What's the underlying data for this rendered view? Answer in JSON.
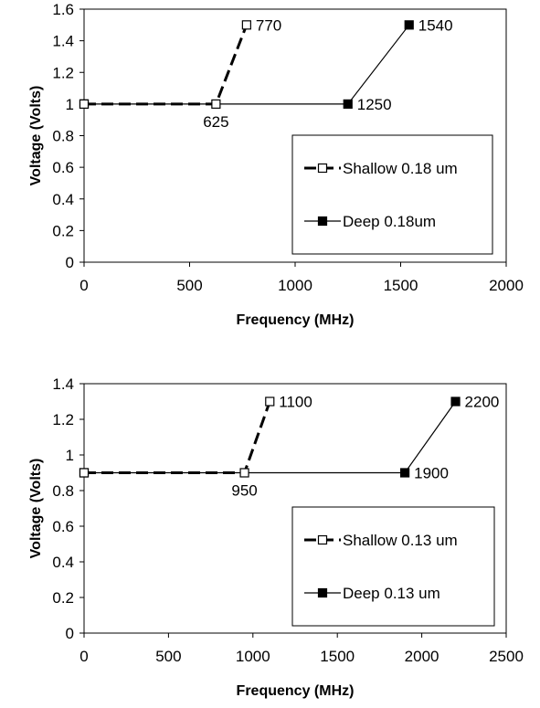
{
  "colors": {
    "line": "#000000",
    "marker_fill_open": "#ffffff",
    "marker_fill_solid": "#000000",
    "background": "#ffffff"
  },
  "chart_data": [
    {
      "type": "line",
      "title": "",
      "xlabel": "Frequency (MHz)",
      "ylabel": "Voltage (Volts)",
      "xlim": [
        0,
        2000
      ],
      "ylim": [
        0,
        1.6
      ],
      "xticks": [
        "0",
        "500",
        "1000",
        "1500",
        "2000"
      ],
      "yticks": [
        "0",
        "0.2",
        "0.4",
        "0.6",
        "0.8",
        "1",
        "1.2",
        "1.4",
        "1.6"
      ],
      "grid": false,
      "legend_position": "bottom-right",
      "series": [
        {
          "name": "Shallow 0.18 um",
          "style": "dashed",
          "marker": "open-square",
          "points": [
            [
              0,
              1.0
            ],
            [
              625,
              1.0
            ],
            [
              770,
              1.5
            ]
          ]
        },
        {
          "name": "Deep 0.18um",
          "style": "solid",
          "marker": "filled-square",
          "points": [
            [
              0,
              1.0
            ],
            [
              1250,
              1.0
            ],
            [
              1540,
              1.5
            ]
          ]
        }
      ],
      "point_labels": [
        {
          "text": "770",
          "x": 770,
          "y": 1.5,
          "pos": "right"
        },
        {
          "text": "625",
          "x": 625,
          "y": 1.0,
          "pos": "below"
        },
        {
          "text": "1540",
          "x": 1540,
          "y": 1.5,
          "pos": "right"
        },
        {
          "text": "1250",
          "x": 1250,
          "y": 1.0,
          "pos": "right"
        }
      ]
    },
    {
      "type": "line",
      "title": "",
      "xlabel": "Frequency (MHz)",
      "ylabel": "Voltage (Volts)",
      "xlim": [
        0,
        2500
      ],
      "ylim": [
        0,
        1.4
      ],
      "xticks": [
        "0",
        "500",
        "1000",
        "1500",
        "2000",
        "2500"
      ],
      "yticks": [
        "0",
        "0.2",
        "0.4",
        "0.6",
        "0.8",
        "1",
        "1.2",
        "1.4"
      ],
      "grid": false,
      "legend_position": "bottom-right",
      "series": [
        {
          "name": "Shallow 0.13 um",
          "style": "dashed",
          "marker": "open-square",
          "points": [
            [
              0,
              0.9
            ],
            [
              950,
              0.9
            ],
            [
              1100,
              1.3
            ]
          ]
        },
        {
          "name": "Deep  0.13 um",
          "style": "solid",
          "marker": "filled-square",
          "points": [
            [
              0,
              0.9
            ],
            [
              1900,
              0.9
            ],
            [
              2200,
              1.3
            ]
          ]
        }
      ],
      "point_labels": [
        {
          "text": "1100",
          "x": 1100,
          "y": 1.3,
          "pos": "right"
        },
        {
          "text": "950",
          "x": 950,
          "y": 0.9,
          "pos": "below"
        },
        {
          "text": "2200",
          "x": 2200,
          "y": 1.3,
          "pos": "right"
        },
        {
          "text": "1900",
          "x": 1900,
          "y": 0.9,
          "pos": "right"
        }
      ]
    }
  ]
}
